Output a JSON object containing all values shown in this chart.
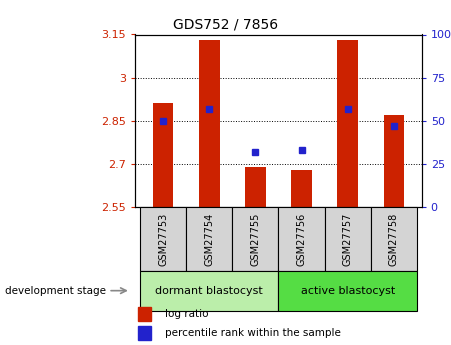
{
  "title": "GDS752 / 7856",
  "samples": [
    "GSM27753",
    "GSM27754",
    "GSM27755",
    "GSM27756",
    "GSM27757",
    "GSM27758"
  ],
  "log_ratios": [
    2.91,
    3.13,
    2.69,
    2.68,
    3.13,
    2.87
  ],
  "percentile_ranks": [
    50,
    57,
    32,
    33,
    57,
    47
  ],
  "bar_bottom": 2.55,
  "ylim_left": [
    2.55,
    3.15
  ],
  "ylim_right": [
    0,
    100
  ],
  "yticks_left": [
    2.55,
    2.7,
    2.85,
    3.0,
    3.15
  ],
  "ytick_labels_left": [
    "2.55",
    "2.7",
    "2.85",
    "3",
    "3.15"
  ],
  "yticks_right": [
    0,
    25,
    50,
    75,
    100
  ],
  "ytick_labels_right": [
    "0",
    "25",
    "50",
    "75",
    "100%"
  ],
  "grid_yticks": [
    2.7,
    2.85,
    3.0
  ],
  "bar_color": "#cc2200",
  "dot_color": "#2222cc",
  "bar_width": 0.45,
  "group1_color": "#bbeeaa",
  "group2_color": "#55dd44",
  "group_label": "development stage",
  "legend_items": [
    {
      "label": "log ratio",
      "color": "#cc2200"
    },
    {
      "label": "percentile rank within the sample",
      "color": "#2222cc"
    }
  ],
  "tick_color_left": "#cc2200",
  "tick_color_right": "#2222cc",
  "sample_box_color": "#d4d4d4",
  "title_fontsize": 10,
  "axis_fontsize": 8,
  "legend_fontsize": 7.5,
  "sample_fontsize": 7,
  "group_fontsize": 8
}
